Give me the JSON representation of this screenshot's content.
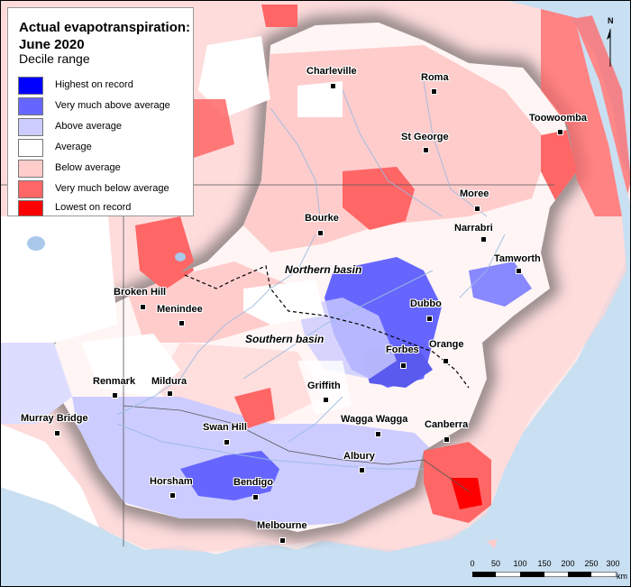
{
  "legend": {
    "title": "Actual evapotranspiration: June 2020",
    "subtitle": "Decile range",
    "items": [
      {
        "label": "Highest on record",
        "color": "#0000ff"
      },
      {
        "label": "Very much above average",
        "color": "#6666ff"
      },
      {
        "label": "Above average",
        "color": "#ccccff"
      },
      {
        "label": "Average",
        "color": "#ffffff"
      },
      {
        "label": "Below average",
        "color": "#ffcccc"
      },
      {
        "label": "Very much below average",
        "color": "#ff6666"
      },
      {
        "label": "Lowest on record",
        "color": "#ff0000"
      }
    ]
  },
  "towns": {
    "charleville": "Charleville",
    "roma": "Roma",
    "toowoomba": "Toowoomba",
    "st_george": "St George",
    "moree": "Moree",
    "bourke": "Bourke",
    "narrabri": "Narrabri",
    "tamworth": "Tamworth",
    "broken_hill": "Broken Hill",
    "menindee": "Menindee",
    "dubbo": "Dubbo",
    "orange": "Orange",
    "forbes": "Forbes",
    "renmark": "Renmark",
    "mildura": "Mildura",
    "griffith": "Griffith",
    "wagga_wagga": "Wagga Wagga",
    "murray_bridge": "Murray Bridge",
    "swan_hill": "Swan Hill",
    "canberra": "Canberra",
    "albury": "Albury",
    "horsham": "Horsham",
    "bendigo": "Bendigo",
    "melbourne": "Melbourne"
  },
  "basins": {
    "northern": "Northern basin",
    "southern": "Southern basin"
  },
  "scale": {
    "ticks": [
      "0",
      "50",
      "100",
      "150",
      "200",
      "250",
      "300"
    ],
    "units": "km"
  },
  "north_arrow": "N",
  "colors": {
    "sea": "#c9dff2",
    "land": "#ffffff",
    "below": "#ffcccc",
    "very_below": "#ff6666",
    "lowest": "#ff0000",
    "above": "#ccccff",
    "very_above": "#6666ff",
    "river": "#9bbbe0",
    "boundary": "#555555"
  }
}
